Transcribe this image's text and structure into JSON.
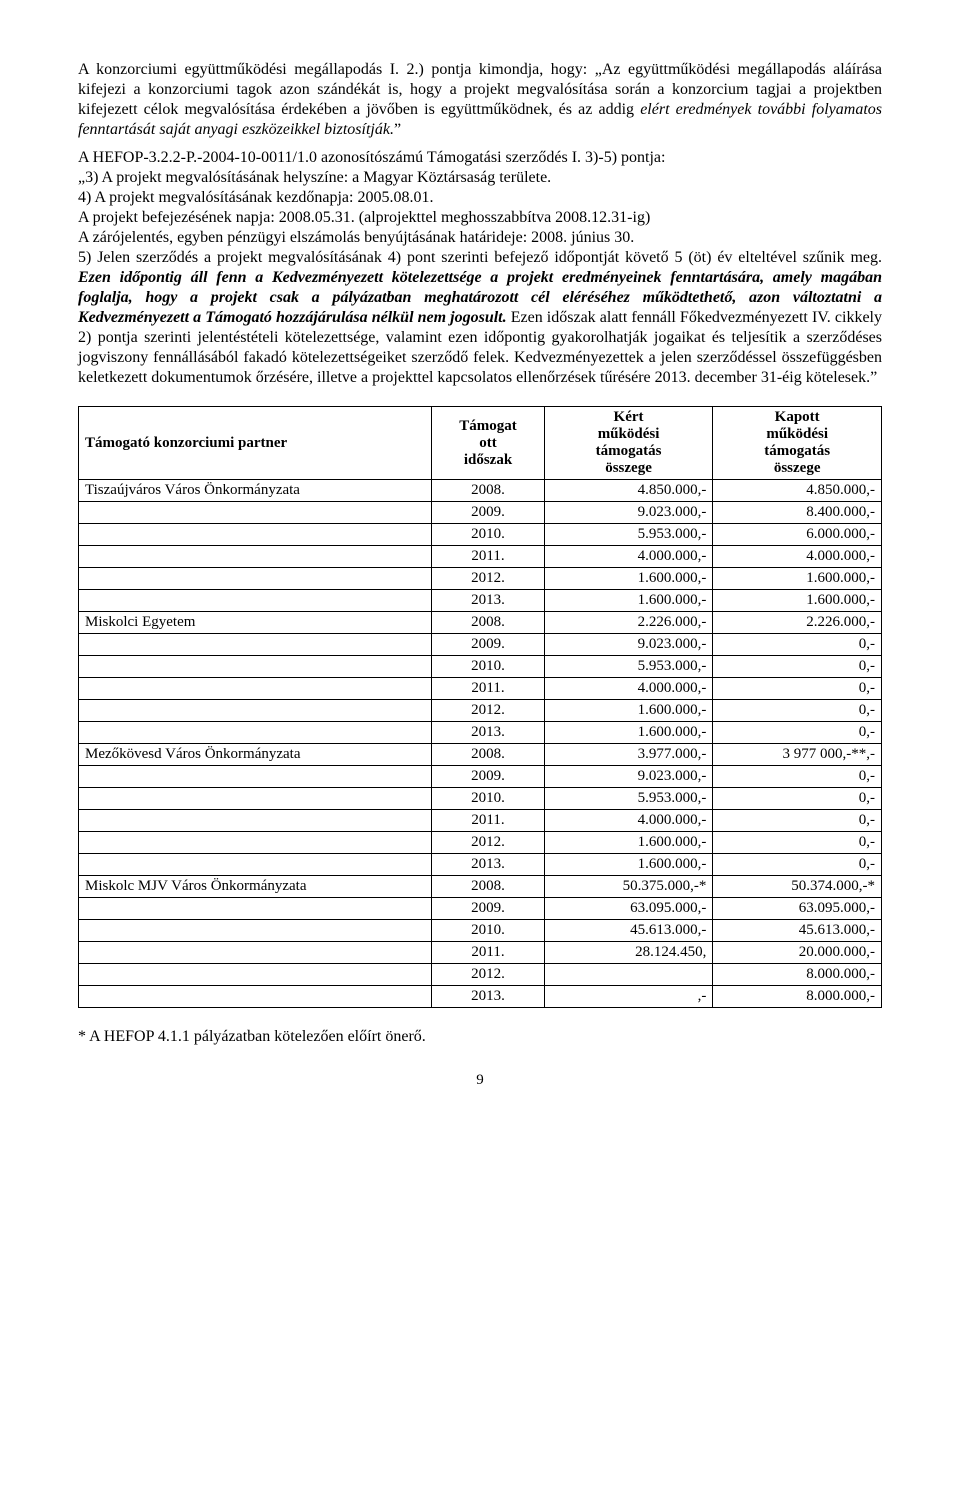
{
  "paragraph1_plain": "A konzorciumi együttműködési megállapodás I. 2.) pontja kimondja, hogy: „Az együttműködési megállapodás aláírása kifejezi a konzorciumi tagok azon szándékát is, hogy a projekt megvalósítása során a konzorcium tagjai a projektben kifejezett célok megvalósítása érdekében a jövőben is együttműködnek, és az addig ",
  "paragraph1_italic": "elért eredmények további folyamatos fenntartását saját anyagi eszközeikkel biztosítják.",
  "paragraph1_close": "”",
  "p2_l1": "A HEFOP-3.2.2-P.-2004-10-0011/1.0 azonosítószámú Támogatási szerződés I. 3)-5) pontja:",
  "p2_l2": "„3) A projekt megvalósításának helyszíne: a Magyar Köztársaság területe.",
  "p2_l3": "4) A projekt megvalósításának kezdőnapja: 2005.08.01.",
  "p2_l4": "A projekt befejezésének napja: 2008.05.31. (alprojekttel meghosszabbítva 2008.12.31-ig)",
  "p2_l5": "A zárójelentés, egyben pénzügyi elszámolás benyújtásának határideje: 2008. június 30.",
  "p2_seg1": "5) Jelen szerződés a projekt megvalósításának 4) pont szerinti befejező időpontját követő 5 (öt) év elteltével szűnik meg. ",
  "p2_bi1": "Ezen időpontig áll fenn a Kedvezményezett kötelezettsége a projekt eredményeinek fenntartására, amely magában foglalja, hogy a projekt csak a pályázatban meghatározott cél eléréséhez működtethető, azon változtatni a Kedvezményezett a Támogató hozzájárulása nélkül nem jogosult.",
  "p2_seg2": " Ezen időszak alatt fennáll Főkedvezményezett IV. cikkely 2) pontja szerinti jelentéstételi kötelezettsége, valamint ezen időpontig gyakorolhatják jogaikat és teljesítik a szerződéses jogviszony fennállásából fakadó kötelezettségeiket szerződő felek. Kedvezményezettek a jelen szerződéssel összefüggésben keletkezett dokumentumok őrzésére, illetve a projekttel kapcsolatos ellenőrzések tűrésére 2013. december 31-éig kötelesek.”",
  "table": {
    "headers": {
      "partner": "Támogató konzorciumi partner",
      "period": "Támogat\nott\nidőszak",
      "requested": "Kért\nműködési\ntámogatás\nösszege",
      "received": "Kapott\nműködési\ntámogatás\nösszege"
    },
    "groups": [
      {
        "partner": "Tiszaújváros Város Önkormányzata",
        "rows": [
          [
            "2008.",
            "4.850.000,-",
            "4.850.000,-"
          ],
          [
            "2009.",
            "9.023.000,-",
            "8.400.000,-"
          ],
          [
            "2010.",
            "5.953.000,-",
            "6.000.000,-"
          ],
          [
            "2011.",
            "4.000.000,-",
            "4.000.000,-"
          ],
          [
            "2012.",
            "1.600.000,-",
            "1.600.000,-"
          ],
          [
            "2013.",
            "1.600.000,-",
            "1.600.000,-"
          ]
        ]
      },
      {
        "partner": "Miskolci Egyetem",
        "rows": [
          [
            "2008.",
            "2.226.000,-",
            "2.226.000,-"
          ],
          [
            "2009.",
            "9.023.000,-",
            "0,-"
          ],
          [
            "2010.",
            "5.953.000,-",
            "0,-"
          ],
          [
            "2011.",
            "4.000.000,-",
            "0,-"
          ],
          [
            "2012.",
            "1.600.000,-",
            "0,-"
          ],
          [
            "2013.",
            "1.600.000,-",
            "0,-"
          ]
        ]
      },
      {
        "partner": "Mezőkövesd Város Önkormányzata",
        "rows": [
          [
            "2008.",
            "3.977.000,-",
            "3 977 000,-**,-"
          ],
          [
            "2009.",
            "9.023.000,-",
            "0,-"
          ],
          [
            "2010.",
            "5.953.000,-",
            "0,-"
          ],
          [
            "2011.",
            "4.000.000,-",
            "0,-"
          ],
          [
            "2012.",
            "1.600.000,-",
            "0,-"
          ],
          [
            "2013.",
            "1.600.000,-",
            "0,-"
          ]
        ]
      },
      {
        "partner": "Miskolc MJV Város Önkormányzata",
        "rows": [
          [
            "2008.",
            "50.375.000,-*",
            "50.374.000,-*"
          ],
          [
            "2009.",
            "63.095.000,-",
            "63.095.000,-"
          ],
          [
            "2010.",
            "45.613.000,-",
            "45.613.000,-"
          ],
          [
            "2011.",
            "28.124.450,",
            "20.000.000,-"
          ],
          [
            "2012.",
            "",
            "8.000.000,-"
          ],
          [
            "2013.",
            ",-",
            "8.000.000,-"
          ]
        ]
      }
    ]
  },
  "footnote": "* A HEFOP 4.1.1 pályázatban kötelezően előírt önerő.",
  "pagenum": "9"
}
